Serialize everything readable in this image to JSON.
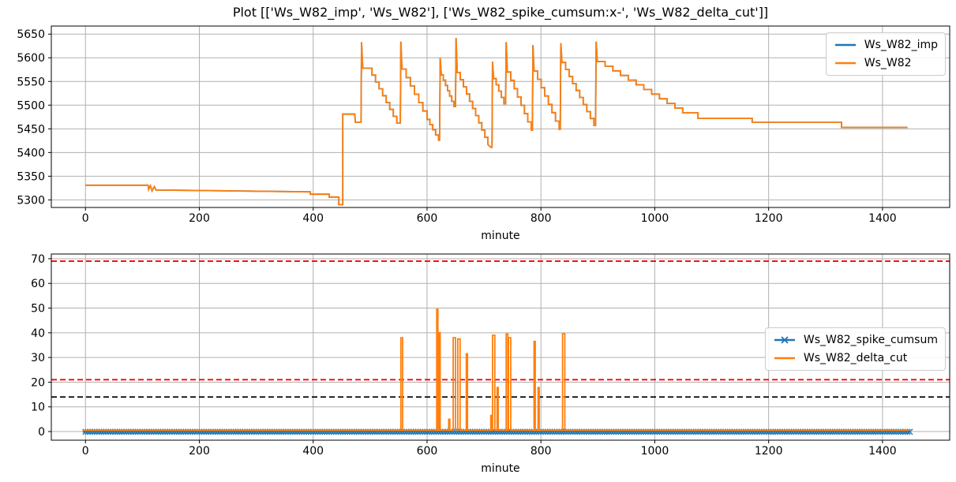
{
  "figure": {
    "background": "#ffffff",
    "grid_color": "#b0b0b0",
    "spine_color": "#000000"
  },
  "chart_data": [
    {
      "type": "line",
      "title": "Plot [['Ws_W82_imp', 'Ws_W82'], ['Ws_W82_spike_cumsum:x-', 'Ws_W82_delta_cut']]",
      "xlabel": "minute",
      "ylabel": "",
      "xlim": [
        -60,
        1518
      ],
      "ylim": [
        5284,
        5667
      ],
      "xticks": [
        0,
        200,
        400,
        600,
        800,
        1000,
        1200,
        1400
      ],
      "yticks": [
        5300,
        5350,
        5400,
        5450,
        5500,
        5550,
        5600,
        5650
      ],
      "grid": true,
      "legend_position": "upper right",
      "series": [
        {
          "name": "Ws_W82_imp",
          "color": "#1f77b4",
          "linewidth": 1.8,
          "marker": "",
          "path_ref": 1
        },
        {
          "name": "Ws_W82",
          "color": "#ff7f0e",
          "linewidth": 1.8,
          "marker": "",
          "path": [
            [
              0,
              5331
            ],
            [
              110,
              5331
            ],
            [
              111,
              5322
            ],
            [
              114,
              5330
            ],
            [
              117,
              5319
            ],
            [
              121,
              5328
            ],
            [
              124,
              5321
            ],
            [
              395,
              5317
            ],
            [
              395,
              5312
            ],
            [
              428,
              5312
            ],
            [
              428,
              5306
            ],
            [
              445,
              5306
            ],
            [
              445,
              5290
            ],
            [
              452,
              5290
            ],
            [
              452,
              5481
            ],
            [
              473,
              5481
            ],
            [
              474,
              5464
            ],
            [
              484,
              5464
            ],
            [
              485,
              5633
            ],
            [
              487,
              5578
            ],
            [
              497,
              5578
            ],
            [
              "s",
              547,
              5462,
              8
            ],
            [
              553,
              5462
            ],
            [
              554,
              5634
            ],
            [
              556,
              5576
            ],
            [
              "s",
              600,
              5470,
              6
            ],
            [
              "s",
              620,
              5426,
              4
            ],
            [
              622,
              5426
            ],
            [
              623,
              5600
            ],
            [
              625,
              5564
            ],
            [
              "s",
              647,
              5497,
              6
            ],
            [
              650,
              5497
            ],
            [
              651,
              5642
            ],
            [
              653,
              5569
            ],
            [
              "s",
              707,
              5417,
              10
            ],
            [
              712,
              5411
            ],
            [
              714,
              5411
            ],
            [
              715,
              5592
            ],
            [
              717,
              5556
            ],
            [
              "s",
              735,
              5503,
              4
            ],
            [
              738,
              5503
            ],
            [
              739,
              5633
            ],
            [
              741,
              5570
            ],
            [
              "s",
              783,
              5447,
              7
            ],
            [
              785,
              5447
            ],
            [
              786,
              5627
            ],
            [
              788,
              5572
            ],
            [
              "s",
              832,
              5449,
              7
            ],
            [
              834,
              5449
            ],
            [
              835,
              5631
            ],
            [
              837,
              5590
            ],
            [
              "s",
              893,
              5457,
              9
            ],
            [
              896,
              5457
            ],
            [
              897,
              5634
            ],
            [
              899,
              5592
            ],
            [
              "s",
              1049,
              5484,
              11
            ],
            [
              1076,
              5484
            ],
            [
              1076,
              5472
            ],
            [
              1171,
              5472
            ],
            [
              1171,
              5464
            ],
            [
              1328,
              5464
            ],
            [
              1328,
              5453
            ],
            [
              1444,
              5453
            ]
          ]
        }
      ]
    },
    {
      "type": "line",
      "title": "",
      "xlabel": "minute",
      "ylabel": "",
      "xlim": [
        -60,
        1518
      ],
      "ylim": [
        -3.5,
        71.9
      ],
      "xticks": [
        0,
        200,
        400,
        600,
        800,
        1000,
        1200,
        1400
      ],
      "yticks": [
        0,
        10,
        20,
        30,
        40,
        50,
        60,
        70
      ],
      "grid": true,
      "legend_position": "center right",
      "hlines": [
        {
          "y": 69,
          "color": "#ff0000",
          "style": "dashed"
        },
        {
          "y": 21,
          "color": "#ff0000",
          "style": "dashed"
        },
        {
          "y": 14,
          "color": "#000000",
          "style": "dashed"
        }
      ],
      "series": [
        {
          "name": "Ws_W82_spike_cumsum",
          "color": "#1f77b4",
          "linewidth": 2,
          "marker": "x",
          "marker_size": 7,
          "marker_step": 4,
          "path": [
            [
              -5,
              -0.1
            ],
            [
              1448,
              -0.1
            ]
          ]
        },
        {
          "name": "Ws_W82_delta_cut",
          "color": "#ff7f0e",
          "linewidth": 1.8,
          "marker": "",
          "path": [
            [
              -5,
              0.5
            ],
            [
              554,
              0.5
            ],
            [
              554,
              38
            ],
            [
              557,
              38
            ],
            [
              557,
              0.5
            ],
            [
              617,
              0.5
            ],
            [
              617,
              49.5
            ],
            [
              619,
              49.5
            ],
            [
              619,
              0.5
            ],
            [
              621,
              0.5
            ],
            [
              621,
              40
            ],
            [
              623,
              40
            ],
            [
              623,
              0.5
            ],
            [
              638,
              0.5
            ],
            [
              638,
              5
            ],
            [
              640,
              5
            ],
            [
              640,
              0.5
            ],
            [
              646,
              0.5
            ],
            [
              646,
              38
            ],
            [
              650,
              38
            ],
            [
              650,
              0.5
            ],
            [
              654,
              0.5
            ],
            [
              654,
              37.5
            ],
            [
              658,
              37.5
            ],
            [
              658,
              0.5
            ],
            [
              669,
              0.5
            ],
            [
              669,
              31.5
            ],
            [
              671,
              31.5
            ],
            [
              671,
              0.5
            ],
            [
              712,
              0.5
            ],
            [
              712,
              6.5
            ],
            [
              713,
              6.5
            ],
            [
              713,
              0.5
            ],
            [
              715,
              0.5
            ],
            [
              715,
              39
            ],
            [
              719,
              39
            ],
            [
              719,
              0.5
            ],
            [
              723,
              0.5
            ],
            [
              723,
              17.8
            ],
            [
              725,
              17.8
            ],
            [
              725,
              0.5
            ],
            [
              739,
              0.5
            ],
            [
              739,
              39.5
            ],
            [
              742,
              39.5
            ],
            [
              742,
              0.5
            ],
            [
              743,
              0.5
            ],
            [
              743,
              38
            ],
            [
              747,
              38
            ],
            [
              747,
              0.5
            ],
            [
              788,
              0.5
            ],
            [
              788,
              36.5
            ],
            [
              790,
              36.5
            ],
            [
              790,
              0.5
            ],
            [
              795,
              0.5
            ],
            [
              795,
              17.8
            ],
            [
              797,
              17.8
            ],
            [
              797,
              0.5
            ],
            [
              838,
              0.5
            ],
            [
              838,
              39.6
            ],
            [
              842,
              39.6
            ],
            [
              842,
              0.5
            ],
            [
              1446,
              0.5
            ]
          ]
        }
      ]
    }
  ]
}
